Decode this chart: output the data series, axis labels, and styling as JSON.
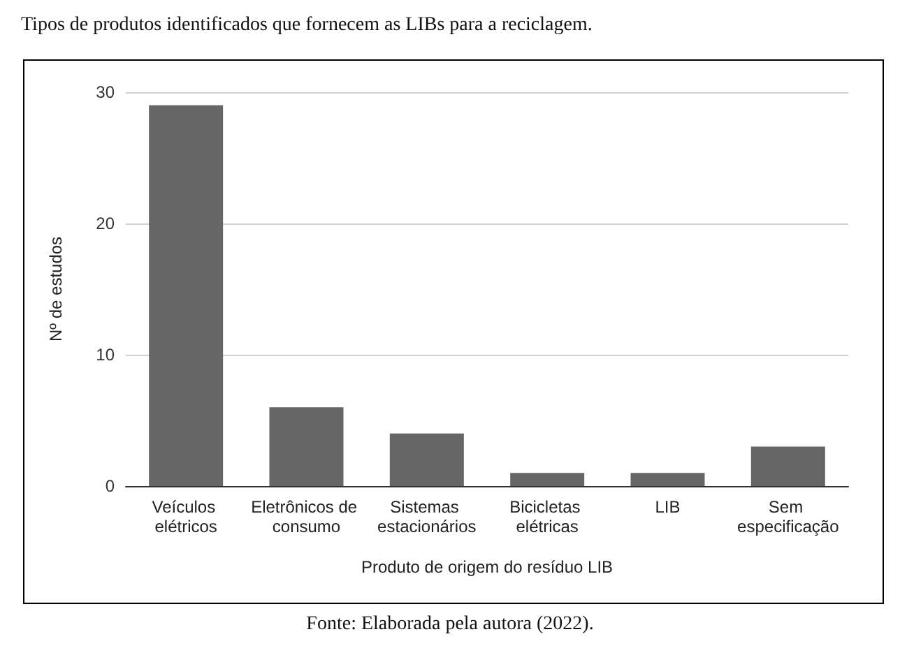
{
  "chart_data": {
    "type": "bar",
    "title": "Tipos de produtos identificados que fornecem as LIBs para a reciclagem.",
    "categories": [
      "Veículos elétricos",
      "Eletrônicos de consumo",
      "Sistemas estacionários",
      "Bicicletas elétricas",
      "LIB",
      "Sem especificação"
    ],
    "values": [
      29,
      6,
      4,
      1,
      1,
      3
    ],
    "color": "#666666",
    "xlabel": "Produto de origem do resíduo LIB",
    "ylabel": "Nº de estudos",
    "ylim": [
      0,
      30
    ],
    "yticks": [
      0,
      10,
      20,
      30
    ],
    "grid": "y",
    "annotations": [
      "Fonte: Elaborada pela autora (2022)."
    ]
  }
}
